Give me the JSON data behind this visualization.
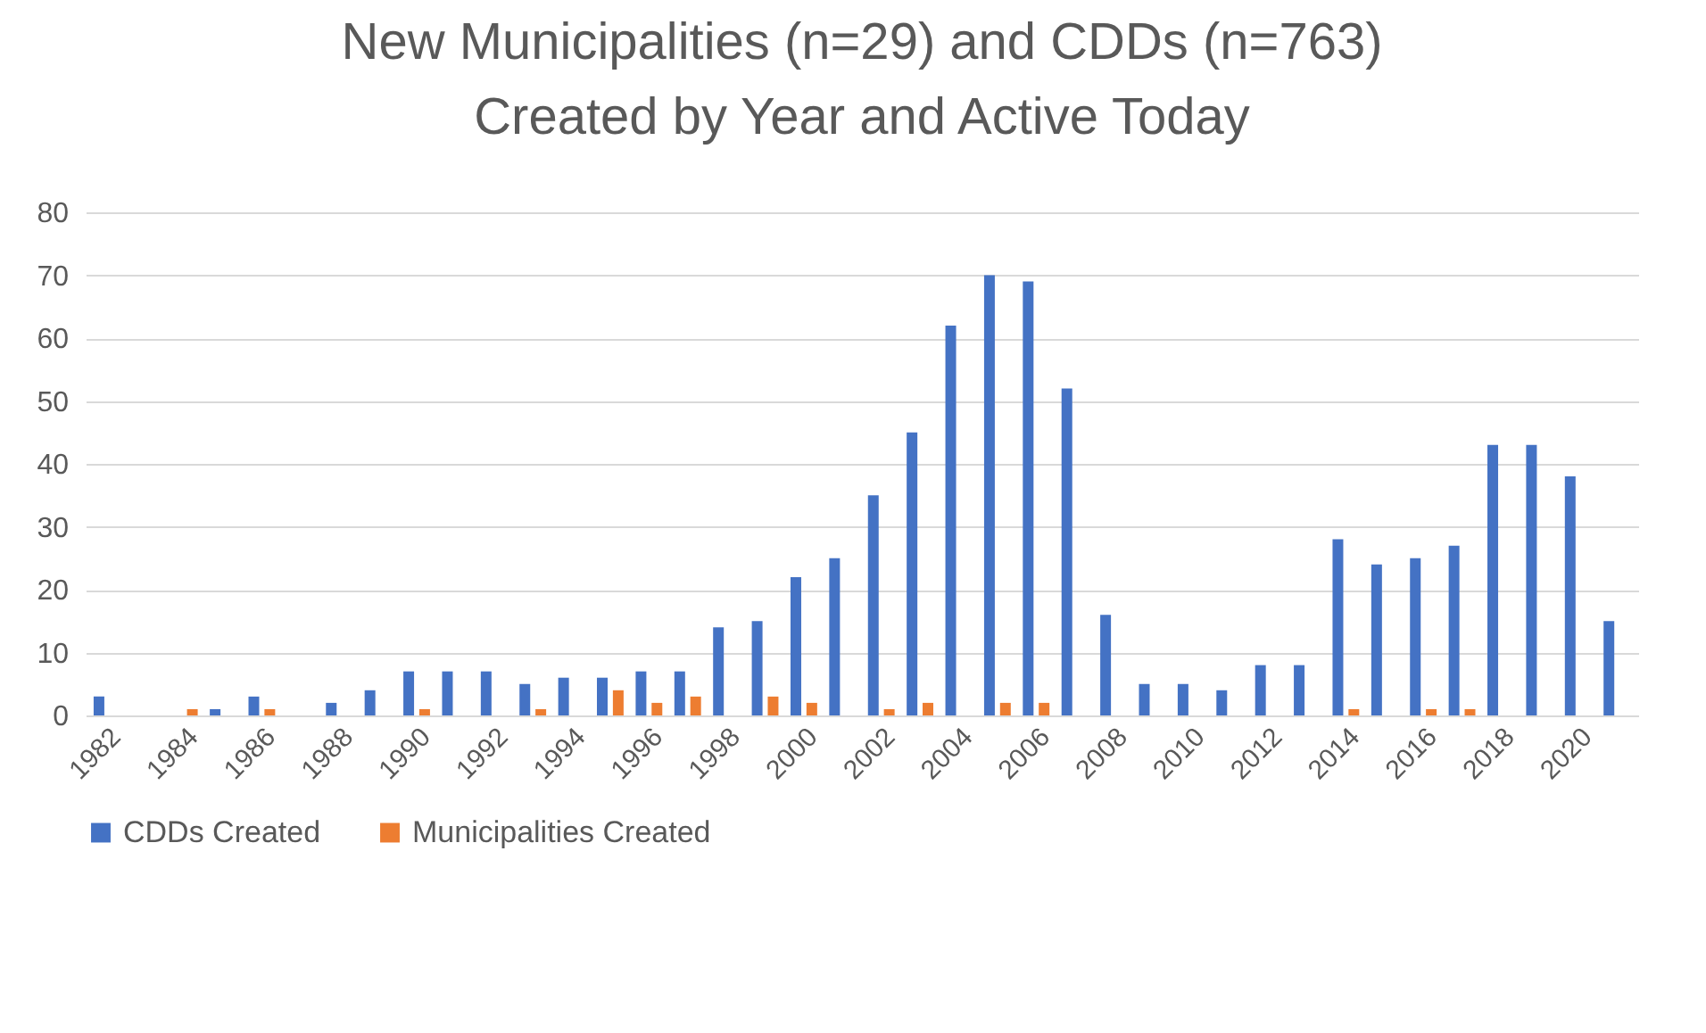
{
  "chart_data": {
    "type": "bar",
    "title": "New Municipalities (n=29) and CDDs (n=763) Created by Year and Active Today",
    "categories": [
      "1982",
      null,
      "1984",
      null,
      "1986",
      null,
      "1988",
      null,
      "1990",
      null,
      "1992",
      null,
      "1994",
      null,
      "1996",
      null,
      "1998",
      null,
      "2000",
      null,
      "2002",
      null,
      "2004",
      null,
      "2006",
      null,
      "2008",
      null,
      "2010",
      null,
      "2012",
      null,
      "2014",
      null,
      "2016",
      null,
      "2018",
      null,
      "2020",
      null
    ],
    "series": [
      {
        "name": "CDDs Created",
        "color": "#4472c4",
        "values": [
          3,
          0,
          0,
          1,
          3,
          0,
          2,
          4,
          7,
          7,
          7,
          5,
          6,
          6,
          7,
          7,
          14,
          15,
          22,
          25,
          35,
          45,
          62,
          70,
          69,
          52,
          16,
          5,
          5,
          4,
          8,
          8,
          28,
          24,
          25,
          27,
          43,
          43,
          38,
          15
        ]
      },
      {
        "name": "Municipalities Created",
        "color": "#ed7d31",
        "values": [
          0,
          0,
          1,
          0,
          1,
          0,
          0,
          0,
          1,
          0,
          0,
          1,
          0,
          4,
          2,
          3,
          0,
          3,
          2,
          0,
          1,
          2,
          0,
          2,
          2,
          0,
          0,
          0,
          0,
          0,
          0,
          0,
          1,
          0,
          1,
          1,
          0,
          0,
          0,
          0
        ]
      }
    ],
    "ylim": [
      0,
      80
    ],
    "yticks": [
      0,
      10,
      20,
      30,
      40,
      50,
      60,
      70,
      80
    ],
    "grid": "y",
    "legend": "bottom"
  }
}
